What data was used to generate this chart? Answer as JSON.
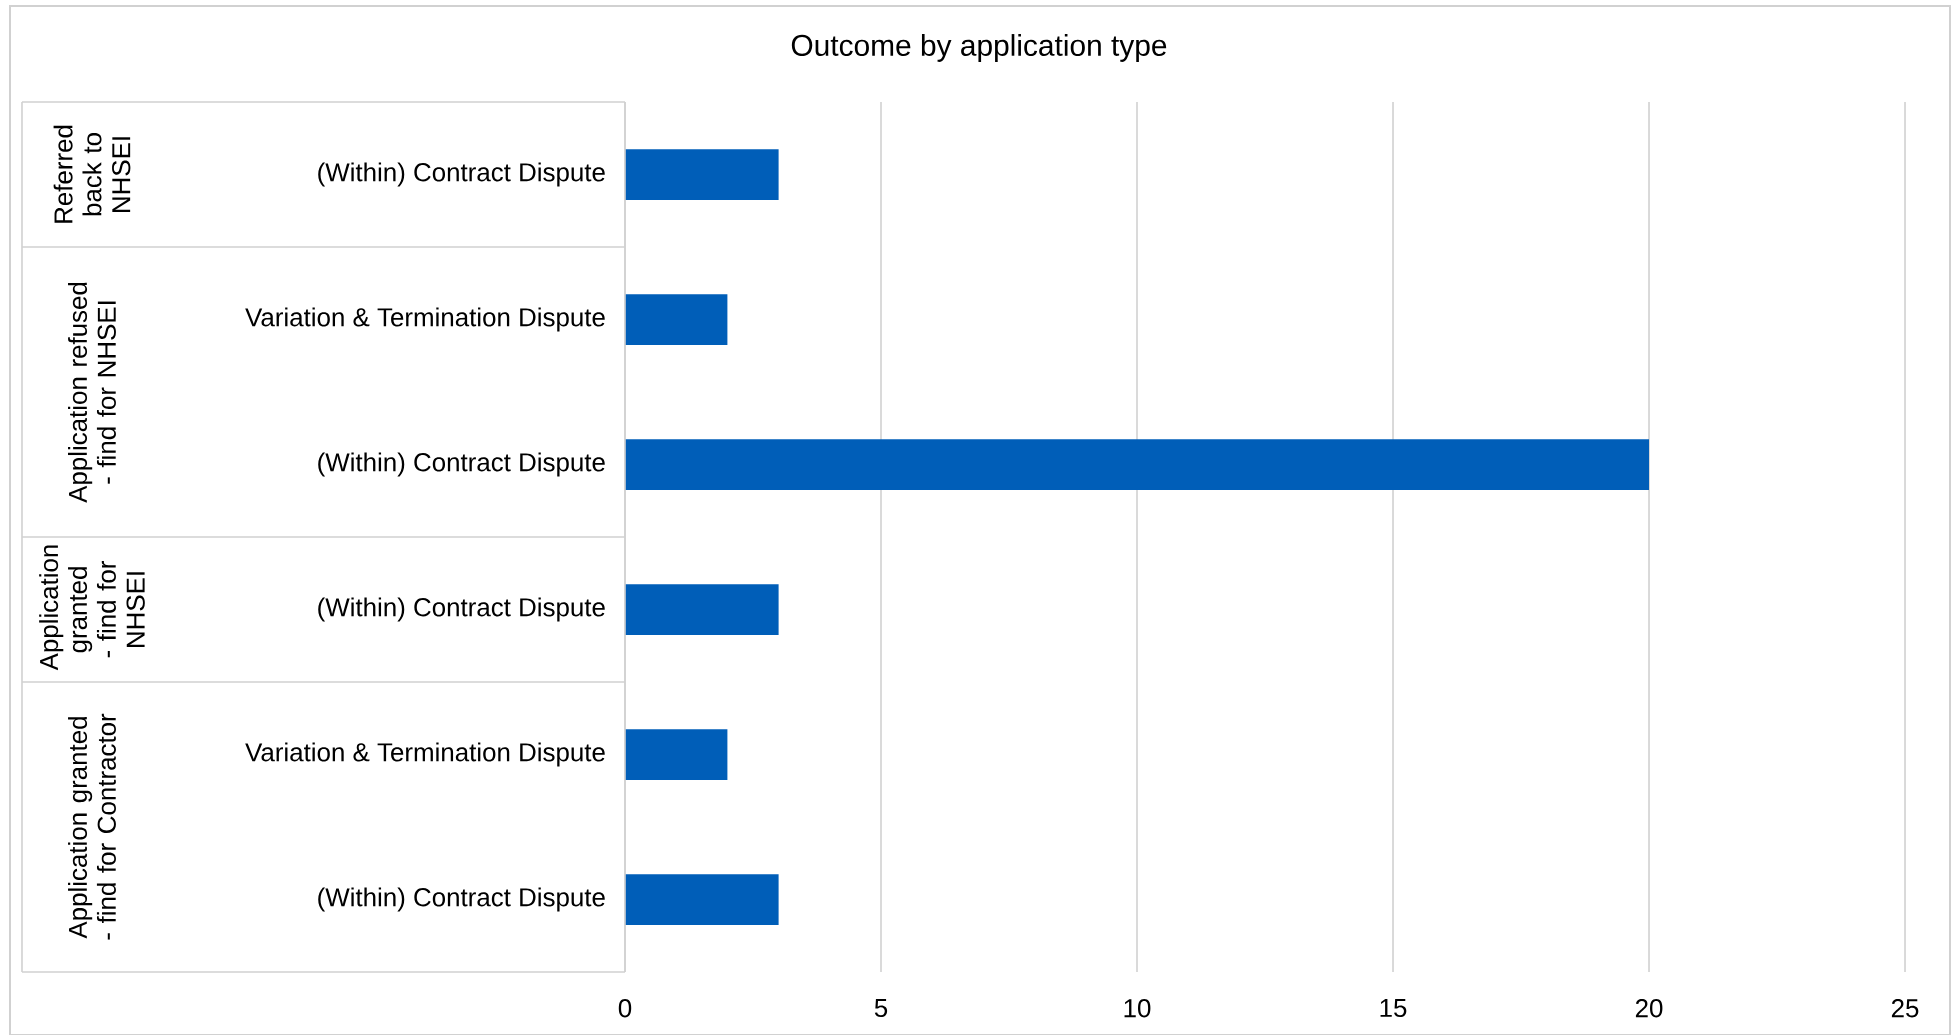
{
  "chart_data": {
    "type": "bar",
    "orientation": "horizontal",
    "title": "Outcome by application type",
    "categories": [
      "(Within) Contract Dispute",
      "Variation & Termination Dispute",
      "(Within) Contract Dispute",
      "(Within) Contract Dispute",
      "Variation & Termination Dispute",
      "(Within) Contract Dispute"
    ],
    "values": [
      3,
      2,
      20,
      3,
      2,
      3
    ],
    "color": "#005eb8",
    "xlim": [
      0,
      25
    ],
    "xticks": [
      0,
      5,
      10,
      15,
      20,
      25
    ],
    "grid": "x",
    "annotations": [
      "Referred back to NHSEI",
      "Application refused - find for NHSEI",
      "Application granted - find for NHSEI",
      "Application granted - find for Contractor"
    ]
  }
}
